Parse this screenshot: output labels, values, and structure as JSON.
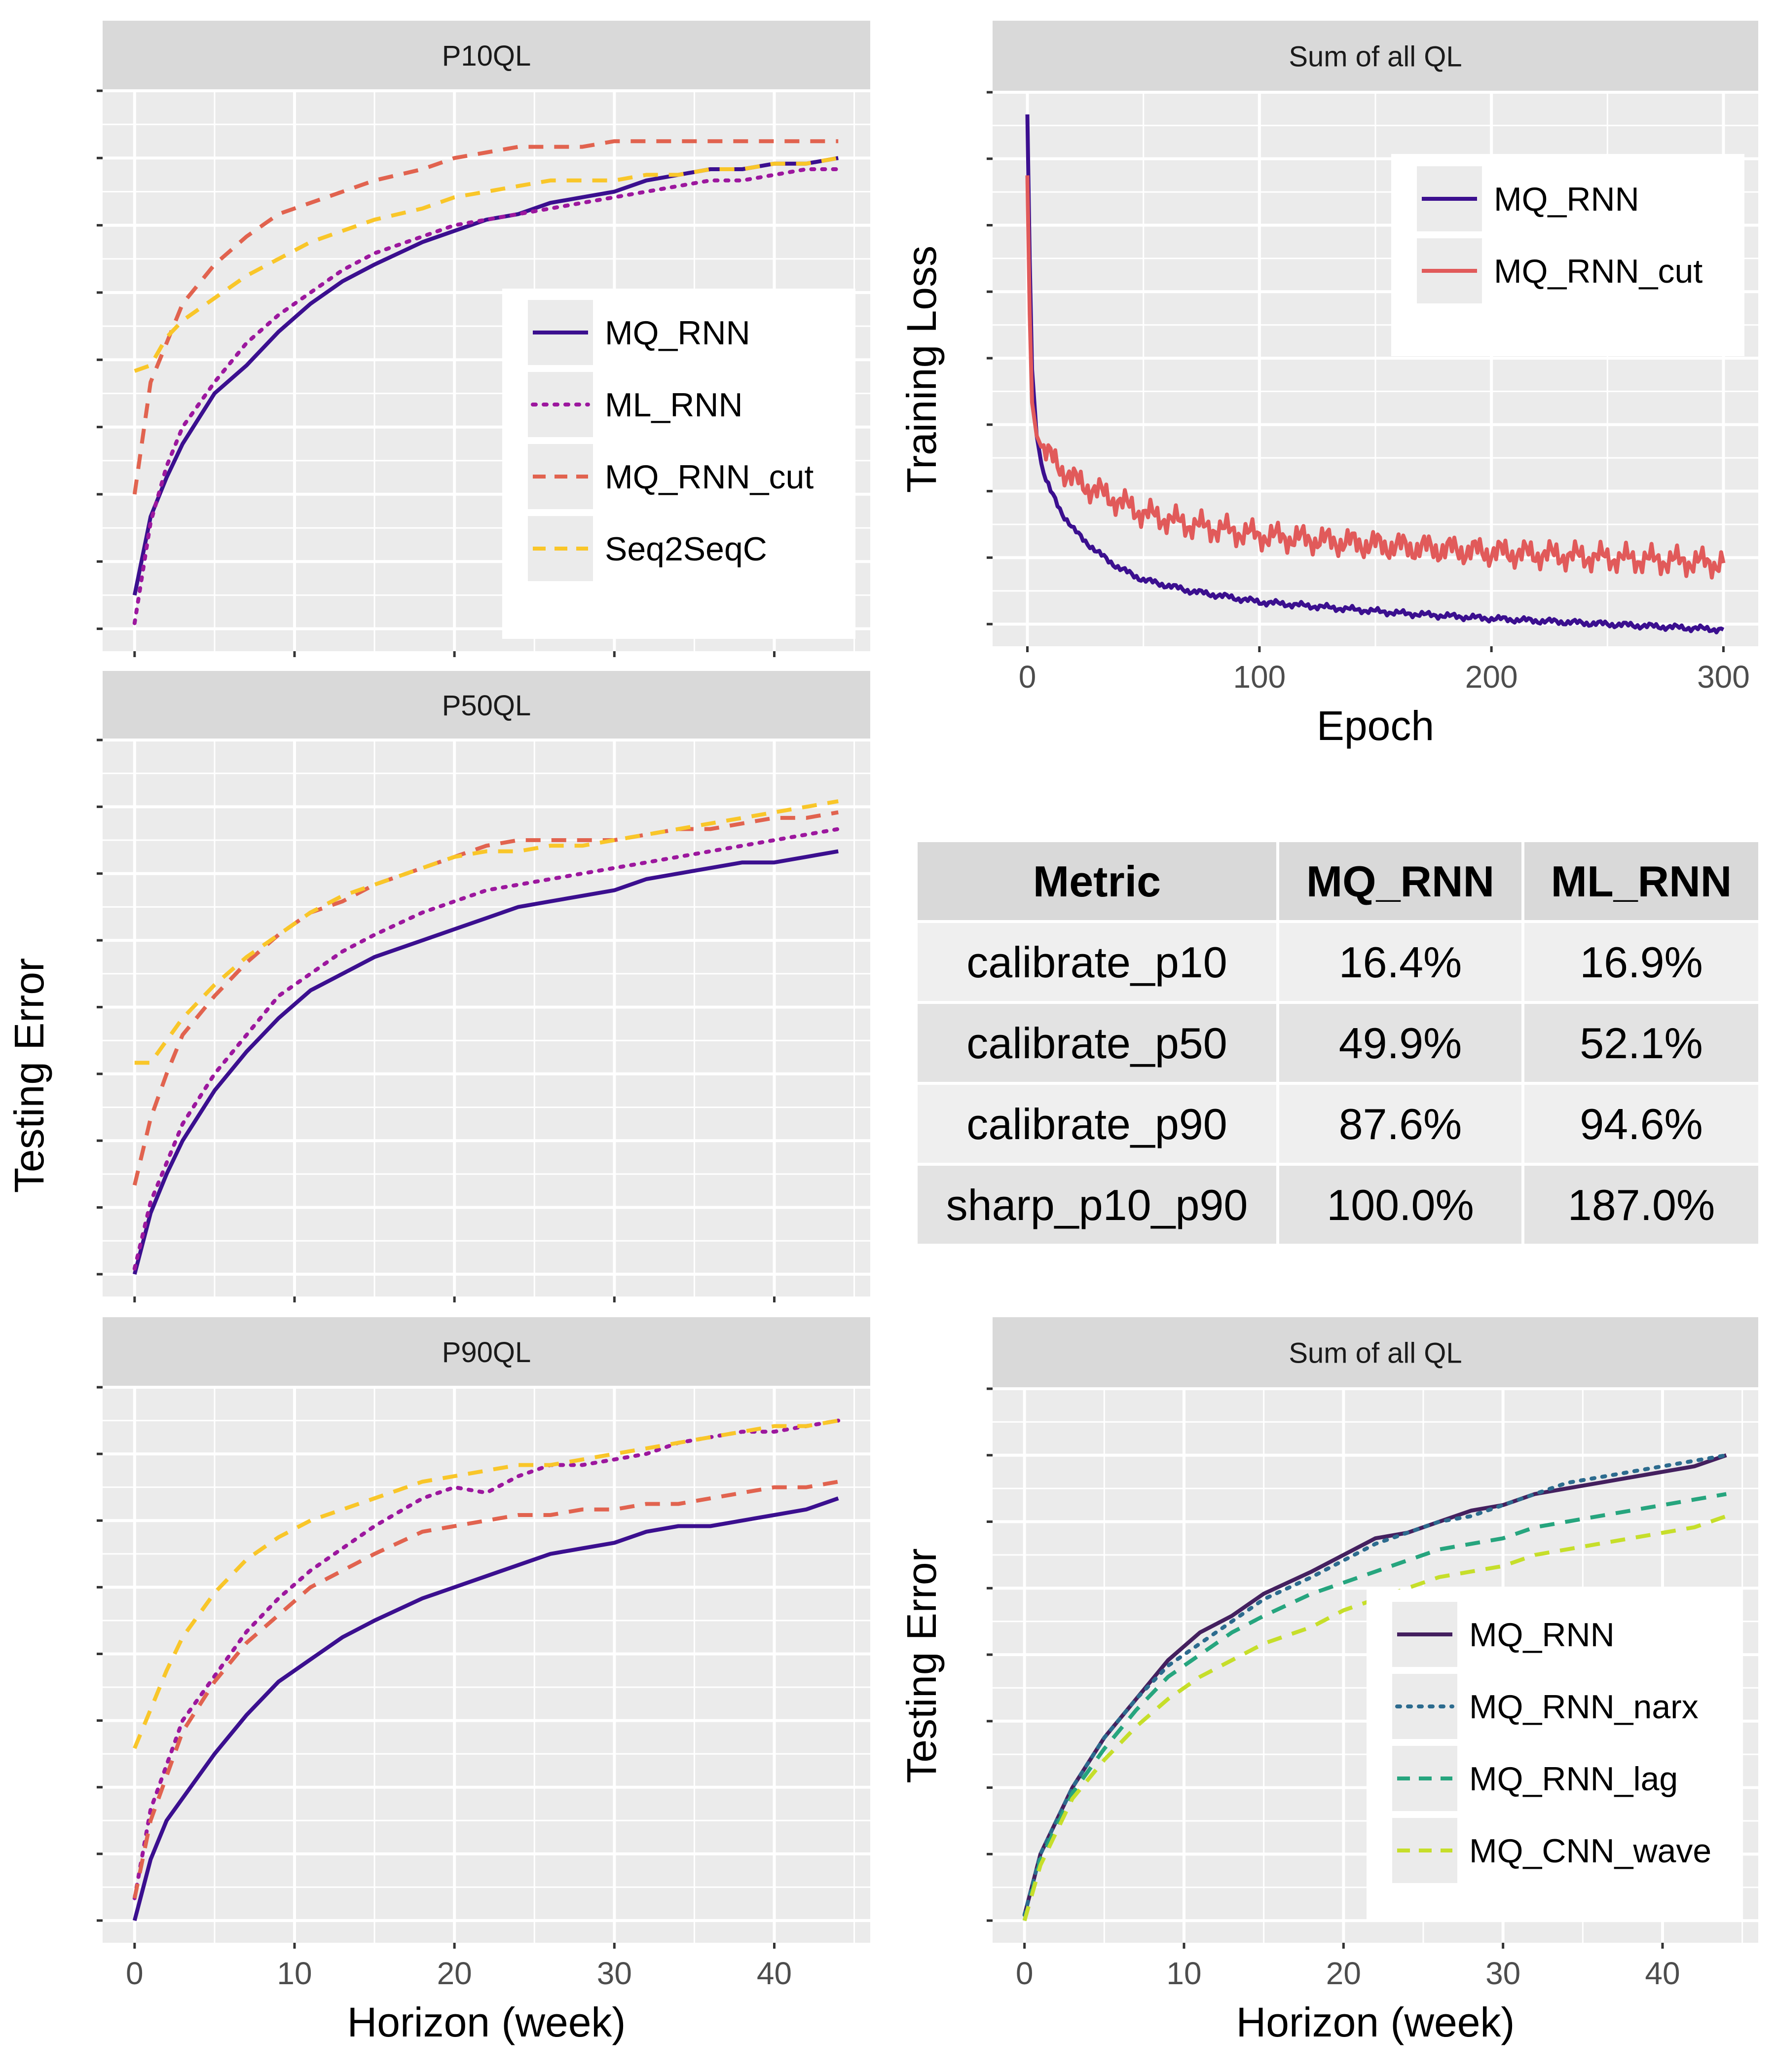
{
  "figure": {
    "left_axis_title": "Testing Error",
    "bottom_left_xlabel": "Horizon (week)"
  },
  "colors": {
    "panel_bg": "#EBEBEB",
    "strip_bg": "#D9D9D9",
    "grid": "#FFFFFF",
    "MQ_RNN": "#3B0F8F",
    "ML_RNN": "#9C179E",
    "MQ_RNN_cut": "#E1634F",
    "Seq2SeqC": "#F9C629",
    "MQ_RNN_cut_train": "#E15A5A",
    "MQ_RNN_dark": "#44205F",
    "MQ_RNN_narx": "#2C6B8E",
    "MQ_RNN_lag": "#26A57E",
    "MQ_CNN_wave": "#C6DE2A"
  },
  "chart_data": [
    {
      "id": "p10",
      "type": "line",
      "title": "P10QL",
      "xlabel": "",
      "ylabel": "",
      "xlim": [
        -2,
        46
      ],
      "ylim": [
        0,
        100
      ],
      "xticks": [],
      "grid": true,
      "legend": "inside-right",
      "x": [
        0,
        1,
        2,
        3,
        5,
        7,
        9,
        11,
        13,
        15,
        18,
        20,
        22,
        24,
        26,
        28,
        30,
        32,
        34,
        36,
        38,
        40,
        42,
        44
      ],
      "series": [
        {
          "name": "MQ_RNN",
          "style": "solid",
          "values": [
            10,
            24,
            31,
            37,
            46,
            51,
            57,
            62,
            66,
            69,
            73,
            75,
            77,
            78,
            80,
            81,
            82,
            84,
            85,
            86,
            86,
            87,
            87,
            88
          ]
        },
        {
          "name": "ML_RNN",
          "style": "dotted",
          "values": [
            5,
            23,
            33,
            40,
            48,
            55,
            60,
            64,
            68,
            71,
            74,
            76,
            77,
            78,
            79,
            80,
            81,
            82,
            83,
            84,
            84,
            85,
            86,
            86
          ]
        },
        {
          "name": "MQ_RNN_cut",
          "style": "dashed",
          "values": [
            28,
            48,
            55,
            62,
            69,
            74,
            78,
            80,
            82,
            84,
            86,
            88,
            89,
            90,
            90,
            90,
            91,
            91,
            91,
            91,
            91,
            91,
            91,
            91
          ]
        },
        {
          "name": "Seq2SeqC",
          "style": "dashed",
          "values": [
            50,
            51,
            56,
            59,
            63,
            67,
            70,
            73,
            75,
            77,
            79,
            81,
            82,
            83,
            84,
            84,
            84,
            85,
            85,
            86,
            86,
            87,
            87,
            88
          ]
        }
      ]
    },
    {
      "id": "p50",
      "type": "line",
      "title": "P50QL",
      "xlabel": "",
      "ylabel": "",
      "xlim": [
        -2,
        46
      ],
      "ylim": [
        0,
        100
      ],
      "xticks": [],
      "grid": true,
      "legend": "none",
      "x": [
        0,
        1,
        2,
        3,
        5,
        7,
        9,
        11,
        13,
        15,
        18,
        20,
        22,
        24,
        26,
        28,
        30,
        32,
        34,
        36,
        38,
        40,
        42,
        44
      ],
      "series": [
        {
          "name": "MQ_RNN",
          "style": "solid",
          "values": [
            4,
            15,
            22,
            28,
            37,
            44,
            50,
            55,
            58,
            61,
            64,
            66,
            68,
            70,
            71,
            72,
            73,
            75,
            76,
            77,
            78,
            78,
            79,
            80
          ]
        },
        {
          "name": "ML_RNN",
          "style": "dotted",
          "values": [
            5,
            17,
            24,
            31,
            40,
            47,
            54,
            58,
            62,
            65,
            69,
            71,
            73,
            74,
            75,
            76,
            77,
            78,
            79,
            80,
            81,
            82,
            83,
            84
          ]
        },
        {
          "name": "MQ_RNN_cut",
          "style": "dashed",
          "values": [
            20,
            32,
            40,
            47,
            54,
            60,
            65,
            69,
            71,
            74,
            77,
            79,
            81,
            82,
            82,
            82,
            82,
            83,
            84,
            84,
            85,
            86,
            86,
            87
          ]
        },
        {
          "name": "Seq2SeqC",
          "style": "dashed",
          "values": [
            42,
            42,
            46,
            50,
            56,
            61,
            65,
            69,
            72,
            74,
            77,
            79,
            80,
            80,
            81,
            81,
            82,
            83,
            84,
            85,
            86,
            87,
            88,
            89
          ]
        }
      ]
    },
    {
      "id": "p90",
      "type": "line",
      "title": "P90QL",
      "xlabel": "Horizon (week)",
      "ylabel": "",
      "xlim": [
        -2,
        46
      ],
      "ylim": [
        0,
        100
      ],
      "xticks": [
        0,
        10,
        20,
        30,
        40
      ],
      "grid": true,
      "legend": "none",
      "x": [
        0,
        1,
        2,
        3,
        5,
        7,
        9,
        11,
        13,
        15,
        18,
        20,
        22,
        24,
        26,
        28,
        30,
        32,
        34,
        36,
        38,
        40,
        42,
        44
      ],
      "series": [
        {
          "name": "MQ_RNN",
          "style": "solid",
          "values": [
            4,
            15,
            22,
            26,
            34,
            41,
            47,
            51,
            55,
            58,
            62,
            64,
            66,
            68,
            70,
            71,
            72,
            74,
            75,
            75,
            76,
            77,
            78,
            80
          ]
        },
        {
          "name": "ML_RNN",
          "style": "dotted",
          "values": [
            8,
            24,
            32,
            40,
            48,
            56,
            62,
            67,
            71,
            75,
            80,
            82,
            81,
            84,
            86,
            86,
            87,
            88,
            90,
            91,
            92,
            92,
            93,
            94
          ]
        },
        {
          "name": "MQ_RNN_cut",
          "style": "dashed",
          "values": [
            8,
            22,
            30,
            38,
            47,
            54,
            59,
            64,
            67,
            70,
            74,
            75,
            76,
            77,
            77,
            78,
            78,
            79,
            79,
            80,
            81,
            82,
            82,
            83
          ]
        },
        {
          "name": "Seq2SeqC",
          "style": "dashed",
          "values": [
            35,
            42,
            49,
            55,
            63,
            69,
            73,
            76,
            78,
            80,
            83,
            84,
            85,
            86,
            86,
            87,
            88,
            89,
            90,
            91,
            92,
            93,
            93,
            94
          ]
        }
      ]
    },
    {
      "id": "train",
      "type": "line",
      "title": "Sum of all QL",
      "xlabel": "Epoch",
      "ylabel": "Training Loss",
      "xlim": [
        -15,
        315
      ],
      "ylim": [
        0,
        100
      ],
      "xticks": [
        0,
        100,
        200,
        300
      ],
      "grid": true,
      "legend": "top-right",
      "x": [
        0,
        1,
        2,
        4,
        6,
        8,
        10,
        15,
        20,
        30,
        40,
        50,
        70,
        100,
        130,
        160,
        200,
        250,
        300
      ],
      "series": [
        {
          "name": "MQ_RNN",
          "style": "solid",
          "values": [
            96,
            70,
            50,
            38,
            33,
            30,
            28,
            24,
            21,
            17,
            14,
            12,
            10,
            8,
            7,
            6,
            5,
            4,
            3
          ]
        },
        {
          "name": "MQ_RNN_cut",
          "style": "solid",
          "values": [
            85,
            60,
            44,
            38,
            36,
            35,
            34,
            32,
            30,
            28,
            26,
            24,
            22,
            20,
            19,
            18,
            17,
            16,
            15
          ]
        }
      ]
    },
    {
      "id": "metrics",
      "type": "table",
      "columns": [
        "Metric",
        "MQ_RNN",
        "ML_RNN"
      ],
      "rows": [
        [
          "calibrate_p10",
          "16.4%",
          "16.9%"
        ],
        [
          "calibrate_p50",
          "49.9%",
          "52.1%"
        ],
        [
          "calibrate_p90",
          "87.6%",
          "94.6%"
        ],
        [
          "sharp_p10_p90",
          "100.0%",
          "187.0%"
        ]
      ]
    },
    {
      "id": "variants",
      "type": "line",
      "title": "Sum of all QL",
      "xlabel": "Horizon (week)",
      "ylabel": "Testing Error",
      "xlim": [
        -2,
        46
      ],
      "ylim": [
        0,
        100
      ],
      "xticks": [
        0,
        10,
        20,
        30,
        40
      ],
      "grid": true,
      "legend": "bottom-right",
      "x": [
        0,
        1,
        2,
        3,
        5,
        7,
        9,
        11,
        13,
        15,
        18,
        20,
        22,
        24,
        26,
        28,
        30,
        32,
        34,
        36,
        38,
        40,
        42,
        44
      ],
      "series": [
        {
          "name": "MQ_RNN",
          "style": "solid",
          "values": [
            5,
            16,
            22,
            28,
            37,
            44,
            51,
            56,
            59,
            63,
            67,
            70,
            73,
            74,
            76,
            78,
            79,
            81,
            82,
            83,
            84,
            85,
            86,
            88
          ]
        },
        {
          "name": "MQ_RNN_narx",
          "style": "dotted",
          "values": [
            5,
            16,
            22,
            28,
            37,
            44,
            50,
            54,
            58,
            62,
            66,
            69,
            72,
            74,
            76,
            77,
            79,
            81,
            83,
            84,
            85,
            86,
            87,
            88
          ]
        },
        {
          "name": "MQ_RNN_lag",
          "style": "dashed",
          "values": [
            4,
            15,
            21,
            27,
            35,
            42,
            48,
            52,
            56,
            59,
            63,
            65,
            67,
            69,
            71,
            72,
            73,
            75,
            76,
            77,
            78,
            79,
            80,
            81
          ]
        },
        {
          "name": "MQ_CNN_wave",
          "style": "dashed",
          "values": [
            4,
            14,
            20,
            26,
            33,
            39,
            44,
            48,
            51,
            54,
            57,
            60,
            62,
            64,
            66,
            67,
            68,
            70,
            71,
            72,
            73,
            74,
            75,
            77
          ]
        }
      ]
    }
  ]
}
